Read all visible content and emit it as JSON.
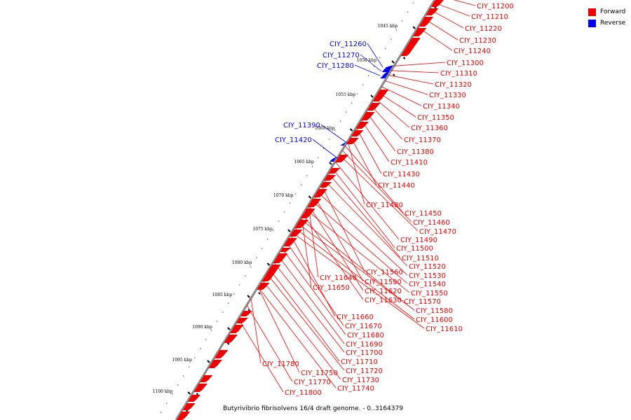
{
  "legend": [
    {
      "label": "Forward",
      "color": "#ee0000"
    },
    {
      "label": "Reverse",
      "color": "#0000ee"
    }
  ],
  "caption": "Butyrivibrio fibrisolvens 16/4 draft genome. - 0..3164379",
  "colors": {
    "forward": "#ee0000",
    "reverse": "#0000ee",
    "backbone": "#888888",
    "tick": "#000000"
  },
  "ticks": [
    "1045 kbp",
    "1050 kbp",
    "1055 kbp",
    "1060 kbp",
    "1065 kbp",
    "1070 kbp",
    "1075 kbp",
    "1080 kbp",
    "1085 kbp",
    "1090 kbp",
    "1095 kbp",
    "1100 kbp"
  ],
  "forward_labels": [
    "CIY_11200",
    "CIY_11210",
    "CIY_11220",
    "CIY_11230",
    "CIY_11240",
    "CIY_11300",
    "CIY_11310",
    "CIY_11320",
    "CIY_11330",
    "CIY_11340",
    "CIY_11350",
    "CIY_11360",
    "CIY_11370",
    "CIY_11380",
    "CIY_11410",
    "CIY_11430",
    "CIY_11440",
    "CIY_11480",
    "CIY_11450",
    "CIY_11460",
    "CIY_11470",
    "CIY_11490",
    "CIY_11500",
    "CIY_11510",
    "CIY_11520",
    "CIY_11560",
    "CIY_11530",
    "CIY_11590",
    "CIY_11540",
    "CIY_11620",
    "CIY_11550",
    "CIY_11630",
    "CIY_11570",
    "CIY_11580",
    "CIY_11600",
    "CIY_11610",
    "CIY_11640",
    "CIY_11650",
    "CIY_11660",
    "CIY_11670",
    "CIY_11680",
    "CIY_11690",
    "CIY_11700",
    "CIY_11710",
    "CIY_11720",
    "CIY_11730",
    "CIY_11740",
    "CIY_11780",
    "CIY_11750",
    "CIY_11770",
    "CIY_11800"
  ],
  "reverse_labels": [
    "CIY_11260",
    "CIY_11270",
    "CIY_11280",
    "CIY_11390",
    "CIY_11420"
  ]
}
